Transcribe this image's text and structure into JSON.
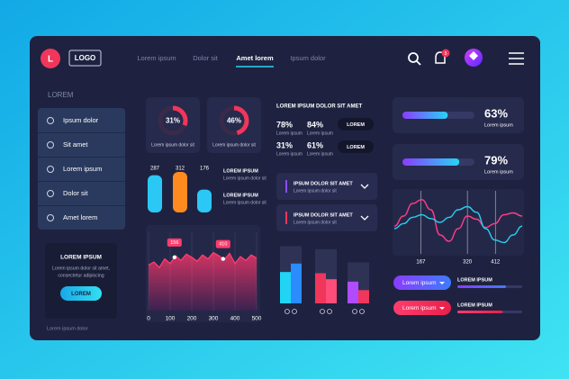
{
  "header": {
    "logo_initial": "L",
    "logo": "LOGO",
    "nav": [
      "Lorem ipsum",
      "Dolor sit",
      "Amet lorem",
      "Ipsum dolor"
    ],
    "active_nav": 2,
    "notifications": 5
  },
  "sidebar": {
    "title": "LOREM",
    "items": [
      "Ipsum dolor",
      "Sit amet",
      "Lorem ipsum",
      "Dolor sit",
      "Amet lorem"
    ],
    "promo": {
      "title": "LOREM IPSUM",
      "lines": [
        "Lorem ipsum dolor sit amet,",
        "consectetur adipiscing"
      ],
      "button": "LOREM"
    },
    "footer": "Lorem ipsum dolor"
  },
  "donuts": [
    {
      "value": 31,
      "label": "31%",
      "caption": "Lorem ipsum dolor sit"
    },
    {
      "value": 46,
      "label": "46%",
      "caption": "Lorem ipsum dolor sit"
    }
  ],
  "mini_bars": {
    "values": [
      287,
      312,
      176
    ],
    "colors": [
      "#2bc8f5",
      "#ff8a1f",
      "#2bc8f5"
    ],
    "legend": [
      {
        "title": "LOREM IPSUM",
        "text": "Lorem ipsum dolor sit"
      },
      {
        "title": "LOREM IPSUM",
        "text": "Lorem ipsum dolor sit"
      }
    ]
  },
  "stats": {
    "title": "LOREM IPSUM DOLOR SIT AMET",
    "items": [
      {
        "label": "78%",
        "caption": "Lorem ipsum"
      },
      {
        "label": "84%",
        "caption": "Lorem ipsum"
      },
      {
        "label": "31%",
        "caption": "Lorem ipsum"
      },
      {
        "label": "61%",
        "caption": "Lorem ipsum"
      }
    ],
    "buttons": [
      "LOREM",
      "LOREM"
    ]
  },
  "dropdowns": [
    {
      "title": "IPSUM DOLOR SIT AMET",
      "text": "Lorem ipsum dolor sit",
      "color": "#8a4cff"
    },
    {
      "title": "IPSUM DOLOR SIT AMET",
      "text": "Lorem ipsum dolor sit",
      "color": "#f0365a"
    }
  ],
  "area_chart": {
    "x": [
      0,
      25,
      50,
      75,
      100,
      125,
      150,
      175,
      200,
      225,
      250,
      275,
      300,
      325,
      350,
      375,
      400,
      425,
      450,
      475,
      500
    ],
    "values": [
      58,
      62,
      55,
      66,
      60,
      70,
      64,
      72,
      68,
      63,
      71,
      66,
      74,
      70,
      65,
      73,
      60,
      69,
      64,
      71,
      67
    ],
    "xlim": [
      0,
      500
    ],
    "ylim": [
      0,
      100
    ],
    "xticks": [
      0,
      100,
      200,
      300,
      400,
      500
    ],
    "color": "#ff3d6e",
    "markers": [
      {
        "x": 120,
        "label": 156
      },
      {
        "x": 345,
        "label": 410
      }
    ]
  },
  "grouped_bars": {
    "ylim": [
      0,
      100
    ],
    "groups": [
      {
        "track": 95,
        "values": [
          52,
          66
        ],
        "colors": [
          "#21d4f3",
          "#2a8cff"
        ]
      },
      {
        "track": 90,
        "values": [
          50,
          40
        ],
        "colors": [
          "#f0365a",
          "#ff4d7a"
        ]
      },
      {
        "track": 68,
        "values": [
          36,
          22
        ],
        "colors": [
          "#b04cff",
          "#f0365a"
        ]
      }
    ]
  },
  "progress": [
    {
      "value": 63,
      "label": "63%",
      "caption": "Lorem ipsum"
    },
    {
      "value": 79,
      "label": "79%",
      "caption": "Lorem ipsum"
    }
  ],
  "wave_chart": {
    "x": [
      80,
      110,
      140,
      170,
      200,
      230,
      260,
      290,
      320,
      350,
      380,
      410,
      440,
      470,
      500
    ],
    "xlim": [
      80,
      500
    ],
    "ylim": [
      0,
      100
    ],
    "xticks": [
      167,
      320,
      412
    ],
    "series": [
      {
        "color": "#ff3d8b",
        "values": [
          44,
          60,
          80,
          86,
          70,
          30,
          20,
          40,
          60,
          55,
          42,
          48,
          62,
          65,
          60
        ]
      },
      {
        "color": "#28d0f0",
        "values": [
          40,
          48,
          58,
          62,
          56,
          50,
          58,
          70,
          75,
          66,
          40,
          22,
          18,
          30,
          44
        ]
      }
    ]
  },
  "controls": {
    "dropdowns": [
      "Lorem ipsum",
      "Lorem ipsum"
    ],
    "bars": [
      {
        "title": "LOREM IPSUM",
        "value": 75
      },
      {
        "title": "LOREM IPSUM",
        "value": 70
      }
    ]
  }
}
